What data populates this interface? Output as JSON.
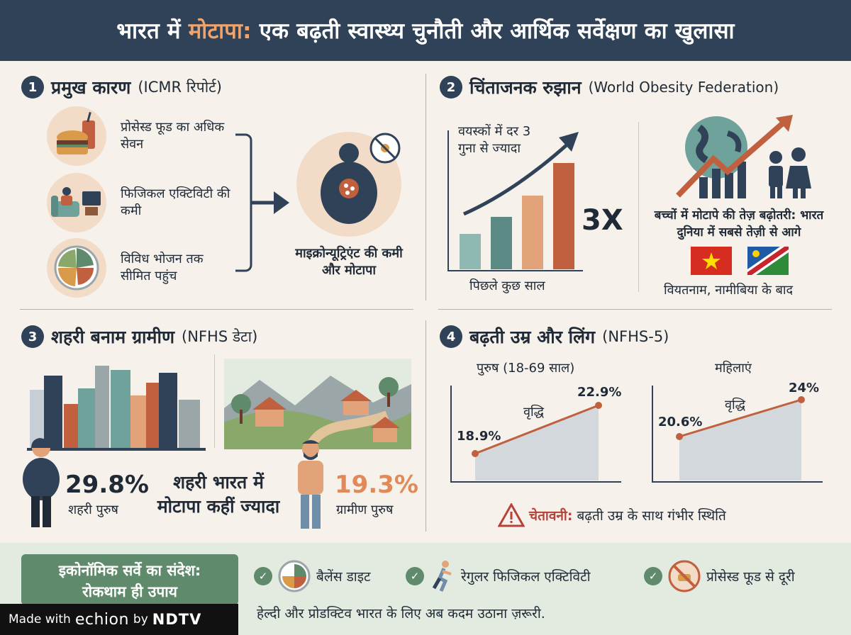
{
  "header": {
    "title_pre": "भारत में ",
    "title_highlight": "मोटापा:",
    "title_post": " एक बढ़ती स्वास्थ्य चुनौती और आर्थिक सर्वेक्षण का खुलासा"
  },
  "colors": {
    "navy": "#2f4258",
    "orange": "#f0a36a",
    "rust": "#c0603f",
    "teal": "#6fa29a",
    "green": "#5f8a6b",
    "red": "#b5433a"
  },
  "section1": {
    "number": "1",
    "title": "प्रमुख कारण",
    "source": "(ICMR रिपोर्ट)",
    "causes": [
      {
        "icon": "burger-drink-icon",
        "label": "प्रोसेस्ड फूड का अधिक सेवन"
      },
      {
        "icon": "couch-tv-icon",
        "label": "फिजिकल एक्टिविटी की कमी"
      },
      {
        "icon": "food-plate-icon",
        "label": "विविध भोजन तक सीमित पहुंच"
      }
    ],
    "result": "माइक्रोन्यूट्रिएंट की कमी और मोटापा"
  },
  "section2": {
    "number": "2",
    "title": "चिंताजनक रुझान",
    "source": "(World Obesity Federation)",
    "adult_label": "वयस्कों में दर 3 गुना से ज्यादा",
    "multiplier": "3X",
    "x_caption": "पिछले कुछ साल",
    "children_label": "बच्चों में मोटापे की तेज़ बढ़ोतरी: भारत दुनिया में सबसे तेज़ी से आगे",
    "flags_caption": "वियतनाम, नामीबिया के बाद",
    "bars": [
      0.25,
      0.37,
      0.52,
      0.75
    ]
  },
  "section3": {
    "number": "3",
    "title": "शहरी बनाम ग्रामीण",
    "source": "(NFHS डेटा)",
    "urban_value": "29.8%",
    "urban_label": "शहरी पुरुष",
    "center_text": "शहरी भारत में मोटापा कहीं ज्यादा",
    "rural_value": "19.3%",
    "rural_label": "ग्रामीण पुरुष"
  },
  "section4": {
    "number": "4",
    "title": "बढ़ती उम्र और लिंग",
    "source": "(NFHS-5)",
    "men": {
      "label": "पुरुष (18-69 साल)",
      "start": "18.9%",
      "end": "22.9%",
      "growth": "वृद्धि",
      "start_value": 18.9,
      "end_value": 22.9
    },
    "women": {
      "label": "महिलाएं",
      "start": "20.6%",
      "end": "24%",
      "growth": "वृद्धि",
      "start_value": 20.6,
      "end_value": 24
    },
    "warning_label": "चेतावनी:",
    "warning_text": " बढ़ती उम्र के साथ गंभीर स्थिति"
  },
  "footer": {
    "eco_title": "इकोनॉमिक सर्वे का संदेश:",
    "eco_sub": "रोकथाम ही उपाय",
    "items": [
      "बैलेंस डाइट",
      "रेगुलर फिजिकल एक्टिविटी",
      "प्रोसेस्ड फूड से दूरी"
    ],
    "tagline": "हेल्दी और प्रोडक्टिव भारत के लिए अब कदम उठाना ज़रूरी.",
    "made_with": "Made with",
    "brand": "echion",
    "by": "by",
    "network": "NDTV"
  }
}
